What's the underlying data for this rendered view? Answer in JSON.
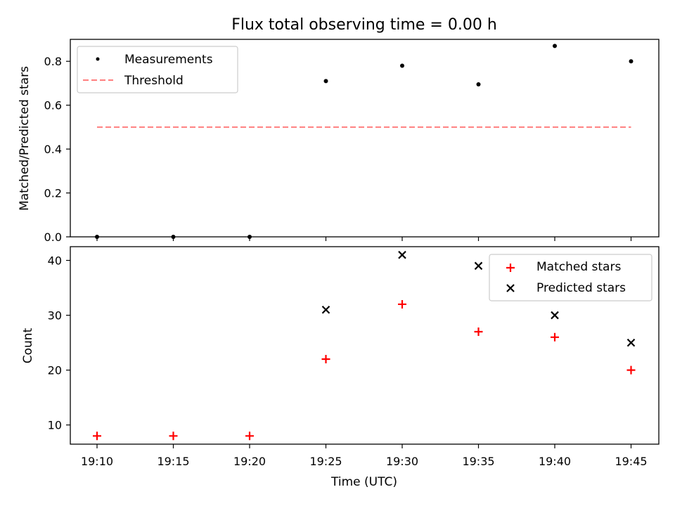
{
  "chart_data": [
    {
      "type": "scatter",
      "title": "Flux total observing time = 0.00 h",
      "ylabel": "Matched/Predicted stars",
      "xlabel": "",
      "ylim": [
        0,
        0.9
      ],
      "yticks": [
        "0.0",
        "0.2",
        "0.4",
        "0.6",
        "0.8"
      ],
      "x": [
        "19:10",
        "19:15",
        "19:20",
        "19:25",
        "19:30",
        "19:35",
        "19:40",
        "19:45"
      ],
      "series": [
        {
          "name": "Measurements",
          "marker": "dot",
          "color": "#000000",
          "values": [
            0.0,
            0.0,
            0.0,
            0.71,
            0.78,
            0.695,
            0.87,
            0.8
          ]
        },
        {
          "name": "Threshold",
          "marker": "dashed-line",
          "color": "#ff7f7f",
          "values": [
            0.5,
            0.5,
            0.5,
            0.5,
            0.5,
            0.5,
            0.5,
            0.5
          ]
        }
      ],
      "legend": "top-left",
      "grid": false
    },
    {
      "type": "scatter",
      "xlabel": "Time (UTC)",
      "ylabel": "Count",
      "ylim": [
        6.5,
        42.5
      ],
      "yticks": [
        "10",
        "20",
        "30",
        "40"
      ],
      "x": [
        "19:10",
        "19:15",
        "19:20",
        "19:25",
        "19:30",
        "19:35",
        "19:40",
        "19:45"
      ],
      "series": [
        {
          "name": "Matched stars",
          "marker": "plus",
          "color": "#ff0000",
          "values": [
            8,
            8,
            8,
            22,
            32,
            27,
            26,
            20
          ]
        },
        {
          "name": "Predicted stars",
          "marker": "x",
          "color": "#000000",
          "values": [
            null,
            null,
            null,
            31,
            41,
            39,
            30,
            25
          ]
        }
      ],
      "legend": "top-right",
      "grid": false
    }
  ]
}
